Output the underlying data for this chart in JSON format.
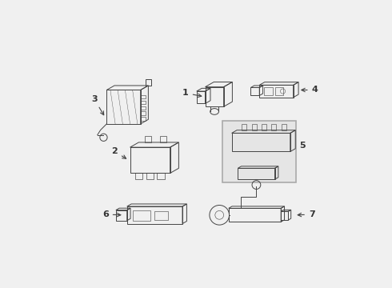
{
  "bg_color": "#f0f0f0",
  "line_color": "#444444",
  "label_color": "#333333",
  "box5_fill": "#e0e0e0",
  "box5_edge": "#999999"
}
